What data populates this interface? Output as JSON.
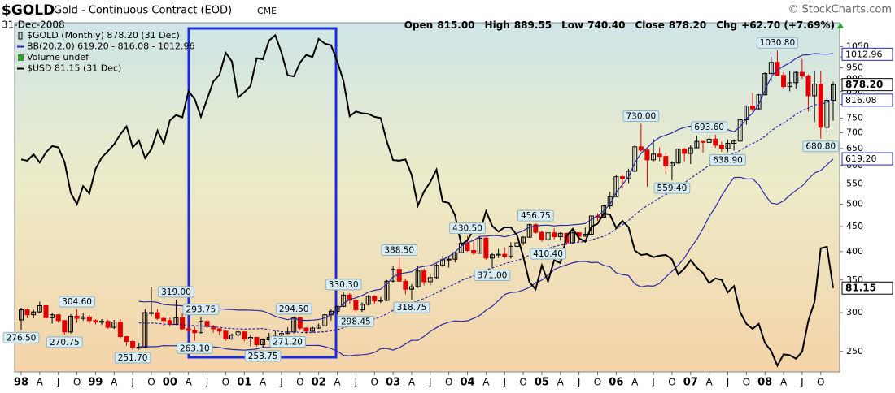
{
  "header": {
    "symbol": "$GOLD",
    "name": "Gold - Continuous Contract (EOD)",
    "exchange": "CME",
    "date": "31-Dec-2008",
    "credit": "© StockCharts.com",
    "stats": [
      {
        "label": "Open",
        "value": "815.00"
      },
      {
        "label": "High",
        "value": "889.55"
      },
      {
        "label": "Low",
        "value": "740.40"
      },
      {
        "label": "Close",
        "value": "878.20"
      },
      {
        "label": "Chg",
        "value": "+62.70 (+7.69%)"
      }
    ]
  },
  "chart_data": {
    "type": "candlestick",
    "log_scale": true,
    "grid": false,
    "categories": [
      "98",
      null,
      null,
      "A",
      null,
      null,
      "J",
      null,
      null,
      "O",
      null,
      null,
      "99",
      null,
      null,
      "A",
      null,
      null,
      "J",
      null,
      null,
      "O",
      null,
      null,
      "00",
      null,
      null,
      "A",
      null,
      null,
      "J",
      null,
      null,
      "O",
      null,
      null,
      "01",
      null,
      null,
      "A",
      null,
      null,
      "J",
      null,
      null,
      "O",
      null,
      null,
      "02",
      null,
      null,
      "A",
      null,
      null,
      "J",
      null,
      null,
      "O",
      null,
      null,
      "03",
      null,
      null,
      "A",
      null,
      null,
      "J",
      null,
      null,
      "O",
      null,
      null,
      "04",
      null,
      null,
      "A",
      null,
      null,
      "J",
      null,
      null,
      "O",
      null,
      null,
      "05",
      null,
      null,
      "A",
      null,
      null,
      "J",
      null,
      null,
      "O",
      null,
      null,
      "06",
      null,
      null,
      "A",
      null,
      null,
      "J",
      null,
      null,
      "O",
      null,
      null,
      "07",
      null,
      null,
      "A",
      null,
      null,
      "J",
      null,
      null,
      "O",
      null,
      null,
      "08",
      null,
      null,
      "A",
      null,
      null,
      "J",
      null,
      null,
      "O",
      null,
      null
    ],
    "ylim": [
      227,
      1175
    ],
    "yticks": [
      250,
      300,
      350,
      400,
      450,
      500,
      550,
      600,
      650,
      700,
      750,
      800,
      850,
      900,
      950,
      1000,
      1050
    ],
    "y2lim": [
      71.1,
      123.3
    ],
    "series": [
      {
        "name": "$GOLD (Monthly) 878.20 (31 Dec)",
        "type": "candlestick",
        "color": "#000000",
        "down_color": "#e00000",
        "open": [
          290,
          304,
          297,
          301,
          310,
          293,
          297,
          289,
          274,
          295,
          292,
          294,
          289,
          287,
          288,
          280,
          287,
          268,
          262,
          255,
          255,
          300,
          300,
          292,
          289,
          284,
          293,
          278,
          276,
          273,
          288,
          281,
          278,
          275,
          265,
          270,
          274,
          265,
          267,
          258,
          264,
          267,
          270,
          272,
          274,
          293,
          279,
          275,
          279,
          282,
          297,
          302,
          309,
          326,
          318,
          304,
          312,
          324,
          317,
          318,
          348,
          368,
          348,
          335,
          339,
          365,
          347,
          354,
          375,
          385,
          386,
          398,
          416,
          402,
          397,
          426,
          388,
          394,
          395,
          391,
          410,
          417,
          428,
          454,
          438,
          423,
          437,
          429,
          436,
          417,
          437,
          430,
          434,
          473,
          470,
          496,
          518,
          569,
          564,
          584,
          655,
          645,
          616,
          633,
          626,
          599,
          607,
          648,
          635,
          652,
          672,
          669,
          679,
          660,
          650,
          666,
          673,
          744,
          794,
          783,
          837,
          925,
          975,
          917,
          870,
          886,
          930,
          914,
          833,
          880,
          718,
          815
        ],
        "high": [
          307,
          306,
          304,
          316,
          311,
          300,
          298,
          290,
          298,
          304.6,
          300,
          297,
          291,
          291,
          290,
          290,
          291,
          269,
          264,
          260,
          305,
          339,
          305,
          295,
          293,
          319,
          299,
          288,
          281,
          293.75,
          290,
          283,
          279,
          277,
          272,
          276,
          275,
          270,
          268,
          266,
          273,
          275,
          273,
          280,
          294.5,
          294,
          280,
          281,
          285,
          300,
          305,
          310,
          330.3,
          329,
          320,
          315,
          326,
          326,
          323,
          350,
          373,
          388.5,
          352,
          343,
          373,
          369,
          359,
          378,
          392,
          391,
          400,
          418,
          430.5,
          421,
          429,
          428,
          398,
          405,
          408,
          418,
          419,
          430,
          456,
          456.75,
          441,
          439,
          446,
          438,
          437,
          443,
          438,
          448,
          474,
          479,
          498,
          530,
          574,
          575,
          591,
          660,
          730,
          648,
          680,
          653,
          638,
          612,
          650,
          652,
          660,
          691,
          673,
          693.6,
          694,
          671,
          678,
          678,
          747,
          797,
          845,
          840,
          930,
          1000,
          1030.8,
          931,
          935,
          934,
          990,
          921,
          935,
          936,
          825,
          889.55
        ],
        "low": [
          276.5,
          292,
          292,
          299,
          290,
          285,
          286,
          270.75,
          272,
          286,
          289,
          284,
          284,
          283,
          278,
          278,
          266,
          257,
          251.7,
          252,
          254,
          295,
          290,
          282,
          281,
          283,
          276,
          274,
          263.1,
          272,
          279,
          273,
          270,
          263,
          264,
          267,
          262,
          256,
          256,
          253.75,
          263,
          266,
          265,
          271.2,
          272,
          276,
          272,
          273,
          278,
          281,
          289,
          298,
          308,
          313,
          298.45,
          301,
          310,
          313,
          314,
          317,
          346,
          347,
          327,
          318.75,
          337,
          341,
          341,
          352,
          372,
          371,
          380,
          397,
          400,
          394,
          396,
          385,
          371,
          388,
          387,
          387,
          399,
          412,
          427,
          435,
          419,
          410.4,
          424,
          421,
          414,
          414,
          418,
          429,
          433,
          462,
          468,
          489,
          517,
          538,
          552,
          582,
          640,
          543,
          612,
          612,
          577,
          559.4,
          605,
          612,
          604,
          651,
          637,
          667,
          652,
          640,
          638.9,
          644,
          671,
          727,
          772,
          781,
          835,
          890,
          914,
          862,
          851,
          862,
          902,
          774,
          736,
          680.8,
          700,
          740.4
        ],
        "close": [
          304,
          297,
          301,
          310,
          293,
          297,
          289,
          274,
          295,
          292,
          294,
          289,
          287,
          288,
          280,
          287,
          268,
          262,
          255,
          255,
          300,
          300,
          292,
          289,
          284,
          293,
          278,
          276,
          273,
          288,
          281,
          278,
          275,
          265,
          270,
          274,
          265,
          267,
          258,
          264,
          267,
          270,
          272,
          274,
          293,
          279,
          275,
          279,
          282,
          297,
          302,
          309,
          326,
          318,
          304,
          312,
          324,
          317,
          318,
          348,
          368,
          348,
          335,
          339,
          365,
          347,
          354,
          375,
          385,
          386,
          398,
          416,
          402,
          397,
          426,
          388,
          394,
          395,
          391,
          410,
          417,
          428,
          454,
          438,
          423,
          437,
          429,
          436,
          417,
          437,
          430,
          434,
          473,
          470,
          496,
          518,
          569,
          564,
          584,
          655,
          645,
          616,
          633,
          626,
          599,
          607,
          648,
          635,
          652,
          672,
          669,
          679,
          660,
          650,
          666,
          673,
          744,
          794,
          783,
          837,
          925,
          975,
          917,
          870,
          886,
          930,
          914,
          833,
          880,
          718,
          815.5,
          878.2
        ],
        "high_labels": [
          null,
          null,
          null,
          null,
          null,
          null,
          null,
          null,
          null,
          "304.60",
          null,
          null,
          null,
          null,
          null,
          null,
          null,
          null,
          null,
          null,
          null,
          null,
          null,
          null,
          null,
          "319.00",
          null,
          null,
          null,
          "293.75",
          null,
          null,
          null,
          null,
          null,
          null,
          null,
          null,
          null,
          null,
          null,
          null,
          null,
          null,
          "294.50",
          null,
          null,
          null,
          null,
          null,
          null,
          null,
          "330.30",
          null,
          null,
          null,
          null,
          null,
          null,
          null,
          null,
          "388.50",
          null,
          null,
          null,
          null,
          null,
          null,
          null,
          null,
          null,
          null,
          "430.50",
          null,
          null,
          null,
          null,
          null,
          null,
          null,
          null,
          null,
          null,
          "456.75",
          null,
          null,
          null,
          null,
          null,
          null,
          null,
          null,
          null,
          null,
          null,
          null,
          null,
          null,
          null,
          null,
          "730.00",
          null,
          null,
          null,
          null,
          null,
          null,
          null,
          null,
          null,
          null,
          "693.60",
          null,
          null,
          null,
          null,
          null,
          null,
          null,
          null,
          null,
          null,
          "1030.80",
          null,
          null,
          null,
          null,
          null,
          null,
          null,
          null,
          null
        ],
        "low_labels": [
          "276.50",
          null,
          null,
          null,
          null,
          null,
          null,
          "270.75",
          null,
          null,
          null,
          null,
          null,
          null,
          null,
          null,
          null,
          null,
          "251.70",
          null,
          null,
          null,
          null,
          null,
          null,
          null,
          null,
          null,
          "263.10",
          null,
          null,
          null,
          null,
          null,
          null,
          null,
          null,
          null,
          null,
          "253.75",
          null,
          null,
          null,
          "271.20",
          null,
          null,
          null,
          null,
          null,
          null,
          null,
          null,
          null,
          null,
          "298.45",
          null,
          null,
          null,
          null,
          null,
          null,
          null,
          null,
          "318.75",
          null,
          null,
          null,
          null,
          null,
          null,
          null,
          null,
          null,
          null,
          null,
          null,
          "371.00",
          null,
          null,
          null,
          null,
          null,
          null,
          null,
          null,
          "410.40",
          null,
          null,
          null,
          null,
          null,
          null,
          null,
          null,
          null,
          null,
          null,
          null,
          null,
          null,
          null,
          null,
          null,
          null,
          null,
          "559.40",
          null,
          null,
          null,
          null,
          null,
          null,
          null,
          null,
          "638.90",
          null,
          null,
          null,
          null,
          null,
          null,
          null,
          null,
          null,
          null,
          null,
          null,
          null,
          null,
          "680.80",
          null,
          null
        ]
      },
      {
        "name": "BB(20,2.0) 619.20 - 816.08 - 1012.96",
        "type": "bollinger",
        "period": 20,
        "width": 2.0,
        "color": "#2a2aa8"
      },
      {
        "name": "Volume undef",
        "type": "volume",
        "color": "#2e9a2e"
      },
      {
        "name": "$USD 81.15 (31 Dec)",
        "type": "line",
        "axis": "y2",
        "color": "#000000",
        "values": [
          99.4,
          99.2,
          100.2,
          98.9,
          100.5,
          101.5,
          101.3,
          99.0,
          94.3,
          92.6,
          95.3,
          94.2,
          97.9,
          99.7,
          100.7,
          101.8,
          103.4,
          104.7,
          101.3,
          102.4,
          99.6,
          101.0,
          104.0,
          101.9,
          105.7,
          106.6,
          106.2,
          110.7,
          109.3,
          106.3,
          109.3,
          112.4,
          113.6,
          117.6,
          116.0,
          109.6,
          110.5,
          111.6,
          116.6,
          116.4,
          119.9,
          120.9,
          117.6,
          113.5,
          113.3,
          115.8,
          117.2,
          116.8,
          120.2,
          119.3,
          119.0,
          116.0,
          112.5,
          106.4,
          107.2,
          106.9,
          106.8,
          106.3,
          106.1,
          102.2,
          99.3,
          99.2,
          99.4,
          97.0,
          92.4,
          94.5,
          95.9,
          97.8,
          93.0,
          92.8,
          91.0,
          86.9,
          87.5,
          89.0,
          88.6,
          91.6,
          89.5,
          88.7,
          89.3,
          89.3,
          88.2,
          85.3,
          81.9,
          81.0,
          84.1,
          82.0,
          84.8,
          84.4,
          88.1,
          89.1,
          87.8,
          87.3,
          89.4,
          89.8,
          91.3,
          91.1,
          89.2,
          90.2,
          89.3,
          86.1,
          85.5,
          85.6,
          85.2,
          85.4,
          85.5,
          84.9,
          82.9,
          83.7,
          84.8,
          83.8,
          83.1,
          81.8,
          82.4,
          82.2,
          80.6,
          81.4,
          78.1,
          76.7,
          76.1,
          76.7,
          74.4,
          73.5,
          71.8,
          73.1,
          73.0,
          72.6,
          73.4,
          77.1,
          79.4,
          86.4,
          86.6,
          81.15
        ]
      }
    ],
    "last_labels": [
      {
        "value": 1012.96,
        "label": "1012.96",
        "bold": false
      },
      {
        "value": 878.2,
        "label": "878.20",
        "bold": true
      },
      {
        "value": 816.08,
        "label": "816.08",
        "bold": false
      },
      {
        "value": 619.2,
        "label": "619.20",
        "bold": false
      },
      {
        "value": 81.15,
        "label": "81.15",
        "axis": "y2",
        "bold": true
      }
    ]
  }
}
